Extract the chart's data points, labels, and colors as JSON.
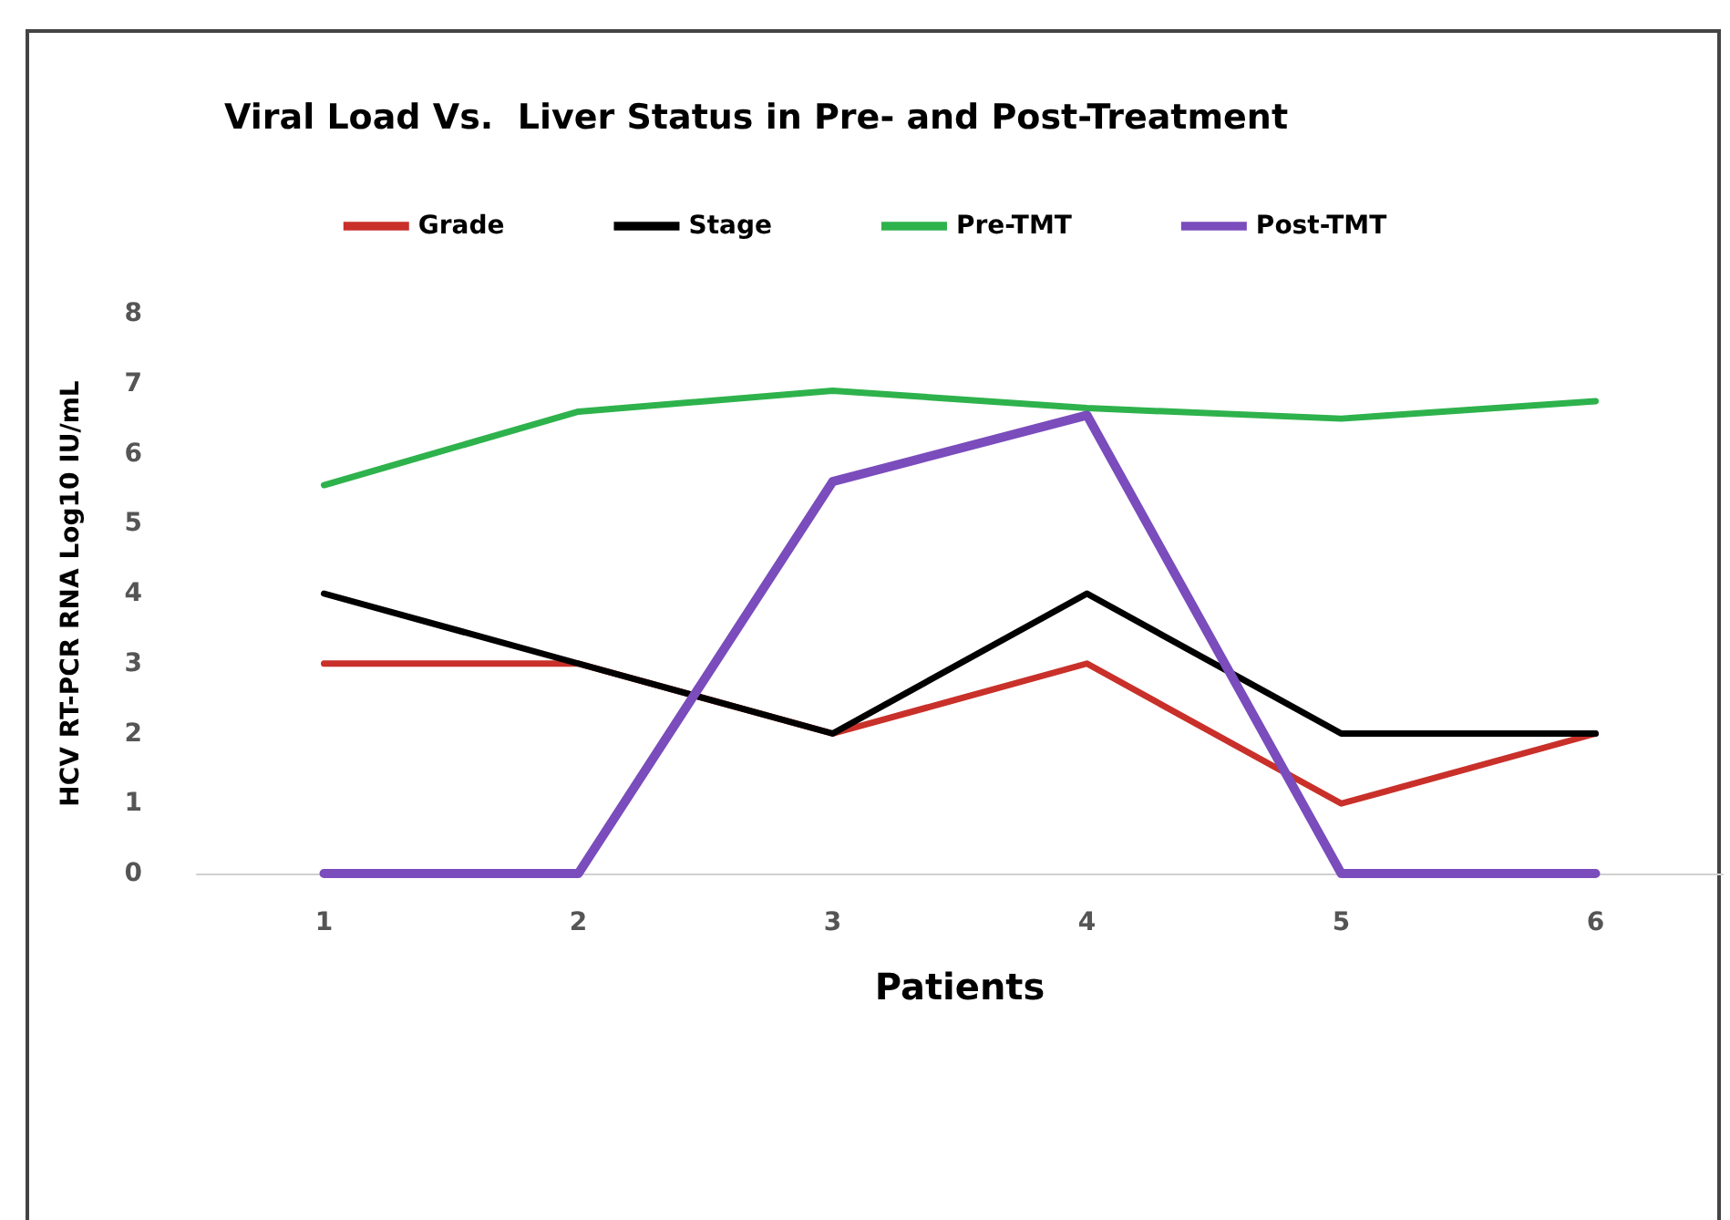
{
  "chart_data": {
    "type": "line",
    "title": "Viral Load Vs.  Liver Status in Pre- and Post-Treatment",
    "xlabel": "Patients",
    "ylabel": "HCV RT-PCR RNA Log10 IU/mL",
    "categories": [
      "1",
      "2",
      "3",
      "4",
      "5",
      "6"
    ],
    "series": [
      {
        "name": "Grade",
        "color": "#c9302a",
        "values": [
          3,
          3,
          2,
          3,
          1,
          2
        ]
      },
      {
        "name": "Stage",
        "color": "#000000",
        "values": [
          4,
          3,
          2,
          4,
          2,
          2
        ]
      },
      {
        "name": "Pre-TMT",
        "color": "#2eb24c",
        "values": [
          5.55,
          6.6,
          6.9,
          6.65,
          6.5,
          6.75
        ]
      },
      {
        "name": "Post-TMT",
        "color": "#7a4cbc",
        "values": [
          0,
          0,
          5.6,
          6.55,
          0,
          0
        ]
      }
    ],
    "ylim": [
      0,
      8
    ],
    "yticks": [
      0,
      1,
      2,
      3,
      4,
      5,
      6,
      7,
      8
    ],
    "grid": false,
    "legend": "top",
    "marker": "none",
    "line_style": "solid"
  }
}
